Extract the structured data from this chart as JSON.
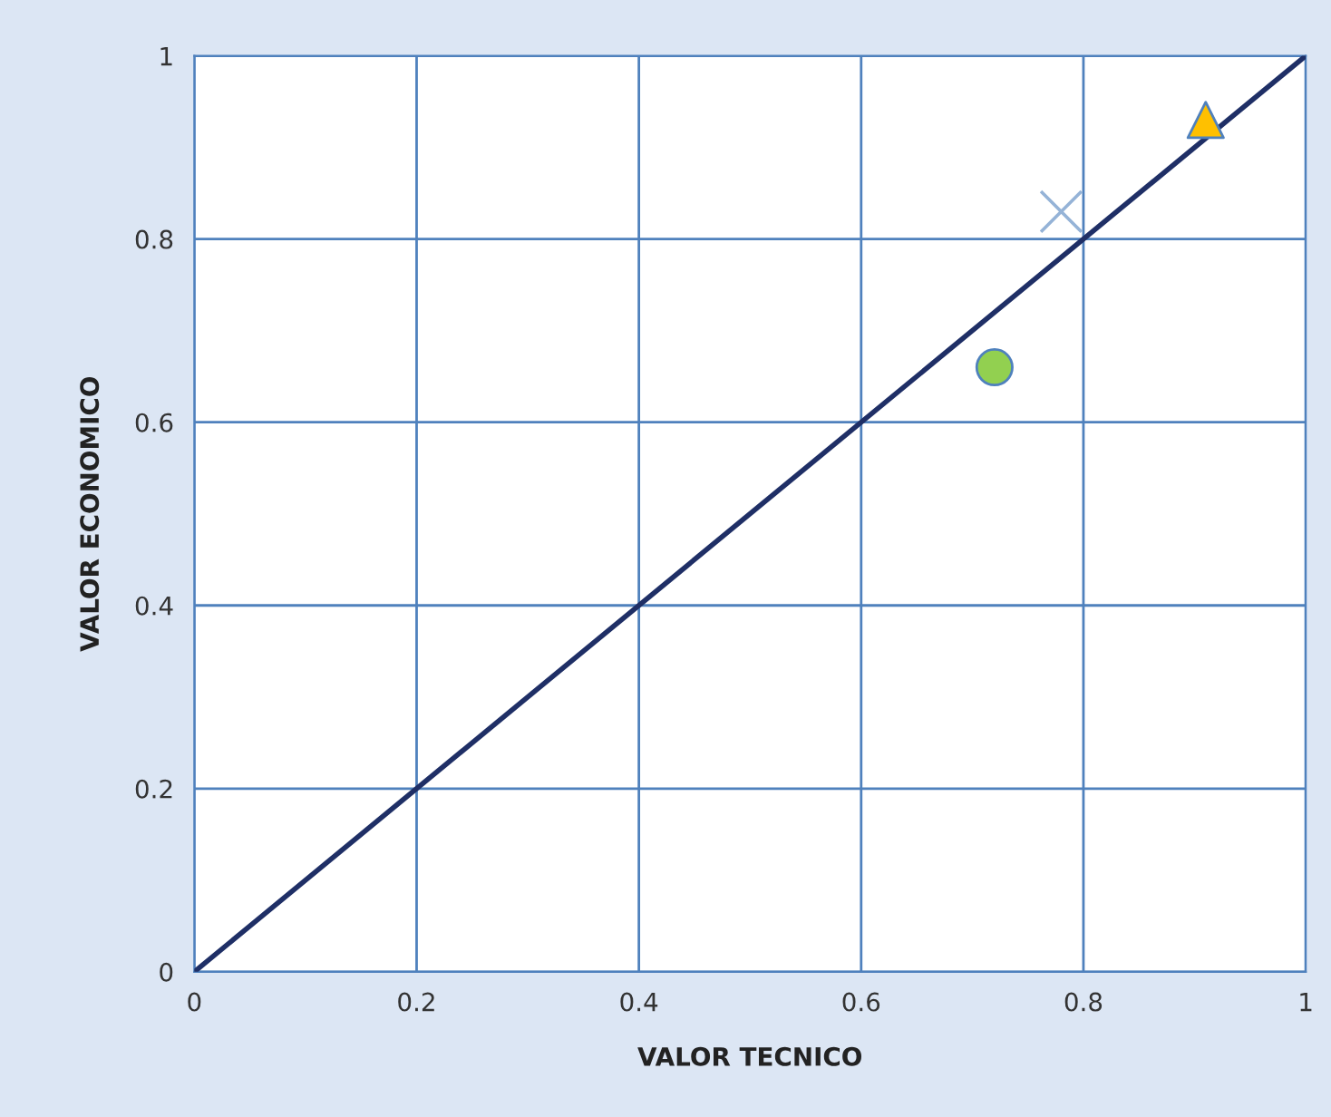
{
  "chart_data": {
    "type": "scatter",
    "xlabel": "VALOR TECNICO",
    "ylabel": "VALOR ECONOMICO",
    "xlim": [
      0,
      1
    ],
    "ylim": [
      0,
      1
    ],
    "xticks": [
      0,
      0.2,
      0.4,
      0.6,
      0.8,
      1
    ],
    "yticks": [
      0,
      0.2,
      0.4,
      0.6,
      0.8,
      1
    ],
    "grid": true,
    "series": [
      {
        "type": "line",
        "color": "#1f2f66",
        "x": [
          0,
          1
        ],
        "values": [
          0,
          1
        ],
        "marker": "none",
        "line_style": "solid"
      },
      {
        "color": "#92d050",
        "x": [
          0.72
        ],
        "values": [
          0.66
        ],
        "marker": "circle"
      },
      {
        "color": "#95b3d7",
        "x": [
          0.78
        ],
        "values": [
          0.83
        ],
        "marker": "cross"
      },
      {
        "color": "#ffc000",
        "x": [
          0.91
        ],
        "values": [
          0.93
        ],
        "marker": "triangle"
      }
    ]
  }
}
